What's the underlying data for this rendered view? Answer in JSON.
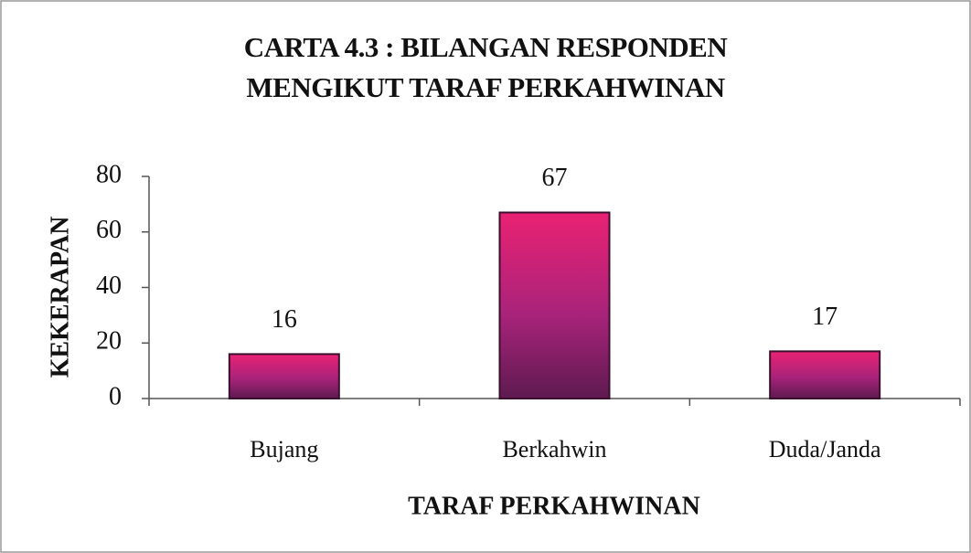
{
  "chart_data": {
    "type": "bar",
    "title": "CARTA 4.3 : BILANGAN RESPONDEN MENGIKUT TARAF PERKAHWINAN",
    "x_label": "TARAF PERKAHWINAN",
    "y_label": "KEKERAPAN",
    "categories": [
      "Bujang",
      "Berkahwin",
      "Duda/Janda"
    ],
    "values": [
      16,
      67,
      17
    ],
    "color": "#d81f6f",
    "ylim": [
      0,
      80
    ],
    "yticks": [
      0,
      20,
      40,
      60,
      80
    ],
    "grid": false
  }
}
